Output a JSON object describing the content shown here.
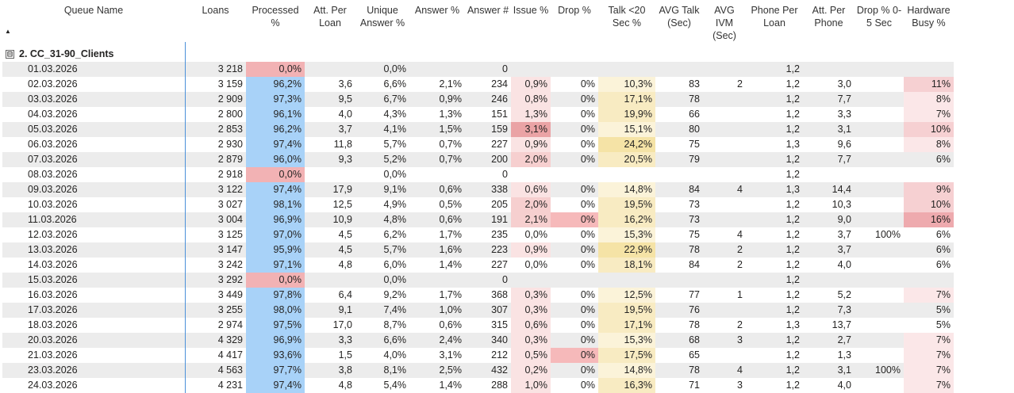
{
  "columns": [
    {
      "key": "queue",
      "label": "Queue Name"
    },
    {
      "key": "loans",
      "label": "Loans"
    },
    {
      "key": "processed",
      "label": "Processed %"
    },
    {
      "key": "att_loan",
      "label": "Att. Per Loan"
    },
    {
      "key": "unique_ans",
      "label": "Unique Answer %"
    },
    {
      "key": "answer_pct",
      "label": "Answer %"
    },
    {
      "key": "answer_num",
      "label": "Answer #"
    },
    {
      "key": "issue",
      "label": "Issue %"
    },
    {
      "key": "drop",
      "label": "Drop %"
    },
    {
      "key": "talk20",
      "label": "Talk <20 Sec %"
    },
    {
      "key": "avg_talk",
      "label": "AVG Talk (Sec)"
    },
    {
      "key": "avg_ivm",
      "label": "AVG IVM (Sec)"
    },
    {
      "key": "phone_loan",
      "label": "Phone Per Loan"
    },
    {
      "key": "att_phone",
      "label": "Att. Per Phone"
    },
    {
      "key": "drop05",
      "label": "Drop % 0-5 Sec"
    },
    {
      "key": "hw_busy",
      "label": "Hardware Busy %"
    }
  ],
  "group": {
    "label": "2. CC_31-90_Clients",
    "expand_symbol": "⊟"
  },
  "sort_icon": "▲",
  "colors": {
    "processed_blue": "#a8d2f8",
    "processed_red": "#f2b2b4",
    "issue_hi": "#eaa3a5",
    "issue_mid": "#f6cfcf",
    "issue_lo": "#fae3e3",
    "drop_red": "#f6b9ba",
    "talk_hi": "#f5e3a6",
    "talk_mid": "#f8ebc2",
    "talk_lo": "#fbf3d9",
    "hw_hi": "#eeaaae",
    "hw_mid": "#f6d0d2",
    "hw_lo": "#fbe7e8"
  },
  "rows": [
    {
      "queue": "01.03.2026",
      "loans": "3 218",
      "processed": "0,0%",
      "att_loan": "",
      "unique_ans": "0,0%",
      "answer_pct": "",
      "answer_num": "0",
      "issue": "",
      "drop": "",
      "talk20": "",
      "avg_talk": "",
      "avg_ivm": "",
      "phone_loan": "1,2",
      "att_phone": "",
      "drop05": "",
      "hw_busy": ""
    },
    {
      "queue": "02.03.2026",
      "loans": "3 159",
      "processed": "96,2%",
      "att_loan": "3,6",
      "unique_ans": "6,6%",
      "answer_pct": "2,1%",
      "answer_num": "234",
      "issue": "0,9%",
      "drop": "0%",
      "talk20": "10,3%",
      "avg_talk": "83",
      "avg_ivm": "2",
      "phone_loan": "1,2",
      "att_phone": "3,0",
      "drop05": "",
      "hw_busy": "11%"
    },
    {
      "queue": "03.03.2026",
      "loans": "2 909",
      "processed": "97,3%",
      "att_loan": "9,5",
      "unique_ans": "6,7%",
      "answer_pct": "0,9%",
      "answer_num": "246",
      "issue": "0,8%",
      "drop": "0%",
      "talk20": "17,1%",
      "avg_talk": "78",
      "avg_ivm": "",
      "phone_loan": "1,2",
      "att_phone": "7,7",
      "drop05": "",
      "hw_busy": "8%"
    },
    {
      "queue": "04.03.2026",
      "loans": "2 800",
      "processed": "96,1%",
      "att_loan": "4,0",
      "unique_ans": "4,3%",
      "answer_pct": "1,3%",
      "answer_num": "151",
      "issue": "1,3%",
      "drop": "0%",
      "talk20": "19,9%",
      "avg_talk": "66",
      "avg_ivm": "",
      "phone_loan": "1,2",
      "att_phone": "3,3",
      "drop05": "",
      "hw_busy": "7%"
    },
    {
      "queue": "05.03.2026",
      "loans": "2 853",
      "processed": "96,2%",
      "att_loan": "3,7",
      "unique_ans": "4,1%",
      "answer_pct": "1,5%",
      "answer_num": "159",
      "issue": "3,1%",
      "drop": "0%",
      "talk20": "15,1%",
      "avg_talk": "80",
      "avg_ivm": "",
      "phone_loan": "1,2",
      "att_phone": "3,1",
      "drop05": "",
      "hw_busy": "10%"
    },
    {
      "queue": "06.03.2026",
      "loans": "2 930",
      "processed": "97,4%",
      "att_loan": "11,8",
      "unique_ans": "5,7%",
      "answer_pct": "0,7%",
      "answer_num": "227",
      "issue": "0,9%",
      "drop": "0%",
      "talk20": "24,2%",
      "avg_talk": "75",
      "avg_ivm": "",
      "phone_loan": "1,3",
      "att_phone": "9,6",
      "drop05": "",
      "hw_busy": "8%"
    },
    {
      "queue": "07.03.2026",
      "loans": "2 879",
      "processed": "96,0%",
      "att_loan": "9,3",
      "unique_ans": "5,2%",
      "answer_pct": "0,7%",
      "answer_num": "200",
      "issue": "2,0%",
      "drop": "0%",
      "talk20": "20,5%",
      "avg_talk": "79",
      "avg_ivm": "",
      "phone_loan": "1,2",
      "att_phone": "7,7",
      "drop05": "",
      "hw_busy": "6%"
    },
    {
      "queue": "08.03.2026",
      "loans": "2 918",
      "processed": "0,0%",
      "att_loan": "",
      "unique_ans": "0,0%",
      "answer_pct": "",
      "answer_num": "0",
      "issue": "",
      "drop": "",
      "talk20": "",
      "avg_talk": "",
      "avg_ivm": "",
      "phone_loan": "1,2",
      "att_phone": "",
      "drop05": "",
      "hw_busy": ""
    },
    {
      "queue": "09.03.2026",
      "loans": "3 122",
      "processed": "97,4%",
      "att_loan": "17,9",
      "unique_ans": "9,1%",
      "answer_pct": "0,6%",
      "answer_num": "338",
      "issue": "0,6%",
      "drop": "0%",
      "talk20": "14,8%",
      "avg_talk": "84",
      "avg_ivm": "4",
      "phone_loan": "1,3",
      "att_phone": "14,4",
      "drop05": "",
      "hw_busy": "9%"
    },
    {
      "queue": "10.03.2026",
      "loans": "3 027",
      "processed": "98,1%",
      "att_loan": "12,5",
      "unique_ans": "4,9%",
      "answer_pct": "0,5%",
      "answer_num": "205",
      "issue": "2,0%",
      "drop": "0%",
      "talk20": "19,5%",
      "avg_talk": "73",
      "avg_ivm": "",
      "phone_loan": "1,2",
      "att_phone": "10,3",
      "drop05": "",
      "hw_busy": "10%"
    },
    {
      "queue": "11.03.2026",
      "loans": "3 004",
      "processed": "96,9%",
      "att_loan": "10,9",
      "unique_ans": "4,8%",
      "answer_pct": "0,6%",
      "answer_num": "191",
      "issue": "2,1%",
      "drop": "0%",
      "talk20": "16,2%",
      "avg_talk": "73",
      "avg_ivm": "",
      "phone_loan": "1,2",
      "att_phone": "9,0",
      "drop05": "",
      "hw_busy": "16%"
    },
    {
      "queue": "12.03.2026",
      "loans": "3 125",
      "processed": "97,0%",
      "att_loan": "4,5",
      "unique_ans": "6,2%",
      "answer_pct": "1,7%",
      "answer_num": "235",
      "issue": "0,0%",
      "drop": "0%",
      "talk20": "15,3%",
      "avg_talk": "75",
      "avg_ivm": "4",
      "phone_loan": "1,2",
      "att_phone": "3,7",
      "drop05": "100%",
      "hw_busy": "6%"
    },
    {
      "queue": "13.03.2026",
      "loans": "3 147",
      "processed": "95,9%",
      "att_loan": "4,5",
      "unique_ans": "5,7%",
      "answer_pct": "1,6%",
      "answer_num": "223",
      "issue": "0,9%",
      "drop": "0%",
      "talk20": "22,9%",
      "avg_talk": "78",
      "avg_ivm": "2",
      "phone_loan": "1,2",
      "att_phone": "3,7",
      "drop05": "",
      "hw_busy": "6%"
    },
    {
      "queue": "14.03.2026",
      "loans": "3 242",
      "processed": "97,1%",
      "att_loan": "4,8",
      "unique_ans": "6,0%",
      "answer_pct": "1,4%",
      "answer_num": "227",
      "issue": "0,0%",
      "drop": "0%",
      "talk20": "18,1%",
      "avg_talk": "84",
      "avg_ivm": "2",
      "phone_loan": "1,2",
      "att_phone": "4,0",
      "drop05": "",
      "hw_busy": "6%"
    },
    {
      "queue": "15.03.2026",
      "loans": "3 292",
      "processed": "0,0%",
      "att_loan": "",
      "unique_ans": "0,0%",
      "answer_pct": "",
      "answer_num": "0",
      "issue": "",
      "drop": "",
      "talk20": "",
      "avg_talk": "",
      "avg_ivm": "",
      "phone_loan": "1,2",
      "att_phone": "",
      "drop05": "",
      "hw_busy": ""
    },
    {
      "queue": "16.03.2026",
      "loans": "3 449",
      "processed": "97,8%",
      "att_loan": "6,4",
      "unique_ans": "9,2%",
      "answer_pct": "1,7%",
      "answer_num": "368",
      "issue": "0,3%",
      "drop": "0%",
      "talk20": "12,5%",
      "avg_talk": "77",
      "avg_ivm": "1",
      "phone_loan": "1,2",
      "att_phone": "5,2",
      "drop05": "",
      "hw_busy": "7%"
    },
    {
      "queue": "17.03.2026",
      "loans": "3 255",
      "processed": "98,0%",
      "att_loan": "9,1",
      "unique_ans": "7,4%",
      "answer_pct": "1,0%",
      "answer_num": "307",
      "issue": "0,3%",
      "drop": "0%",
      "talk20": "19,5%",
      "avg_talk": "76",
      "avg_ivm": "",
      "phone_loan": "1,2",
      "att_phone": "7,3",
      "drop05": "",
      "hw_busy": "5%"
    },
    {
      "queue": "18.03.2026",
      "loans": "2 974",
      "processed": "97,5%",
      "att_loan": "17,0",
      "unique_ans": "8,7%",
      "answer_pct": "0,6%",
      "answer_num": "315",
      "issue": "0,6%",
      "drop": "0%",
      "talk20": "17,1%",
      "avg_talk": "78",
      "avg_ivm": "2",
      "phone_loan": "1,3",
      "att_phone": "13,7",
      "drop05": "",
      "hw_busy": "5%"
    },
    {
      "queue": "20.03.2026",
      "loans": "4 329",
      "processed": "96,9%",
      "att_loan": "3,3",
      "unique_ans": "6,6%",
      "answer_pct": "2,4%",
      "answer_num": "340",
      "issue": "0,3%",
      "drop": "0%",
      "talk20": "15,3%",
      "avg_talk": "68",
      "avg_ivm": "3",
      "phone_loan": "1,2",
      "att_phone": "2,7",
      "drop05": "",
      "hw_busy": "7%"
    },
    {
      "queue": "21.03.2026",
      "loans": "4 417",
      "processed": "93,6%",
      "att_loan": "1,5",
      "unique_ans": "4,0%",
      "answer_pct": "3,1%",
      "answer_num": "212",
      "issue": "0,5%",
      "drop": "0%",
      "talk20": "17,5%",
      "avg_talk": "65",
      "avg_ivm": "",
      "phone_loan": "1,2",
      "att_phone": "1,3",
      "drop05": "",
      "hw_busy": "7%"
    },
    {
      "queue": "23.03.2026",
      "loans": "4 563",
      "processed": "97,7%",
      "att_loan": "3,8",
      "unique_ans": "8,1%",
      "answer_pct": "2,5%",
      "answer_num": "432",
      "issue": "0,2%",
      "drop": "0%",
      "talk20": "14,8%",
      "avg_talk": "78",
      "avg_ivm": "4",
      "phone_loan": "1,2",
      "att_phone": "3,1",
      "drop05": "100%",
      "hw_busy": "7%"
    },
    {
      "queue": "24.03.2026",
      "loans": "4 231",
      "processed": "97,4%",
      "att_loan": "4,8",
      "unique_ans": "5,4%",
      "answer_pct": "1,4%",
      "answer_num": "288",
      "issue": "1,0%",
      "drop": "0%",
      "talk20": "16,3%",
      "avg_talk": "71",
      "avg_ivm": "3",
      "phone_loan": "1,2",
      "att_phone": "4,0",
      "drop05": "",
      "hw_busy": "7%"
    }
  ]
}
